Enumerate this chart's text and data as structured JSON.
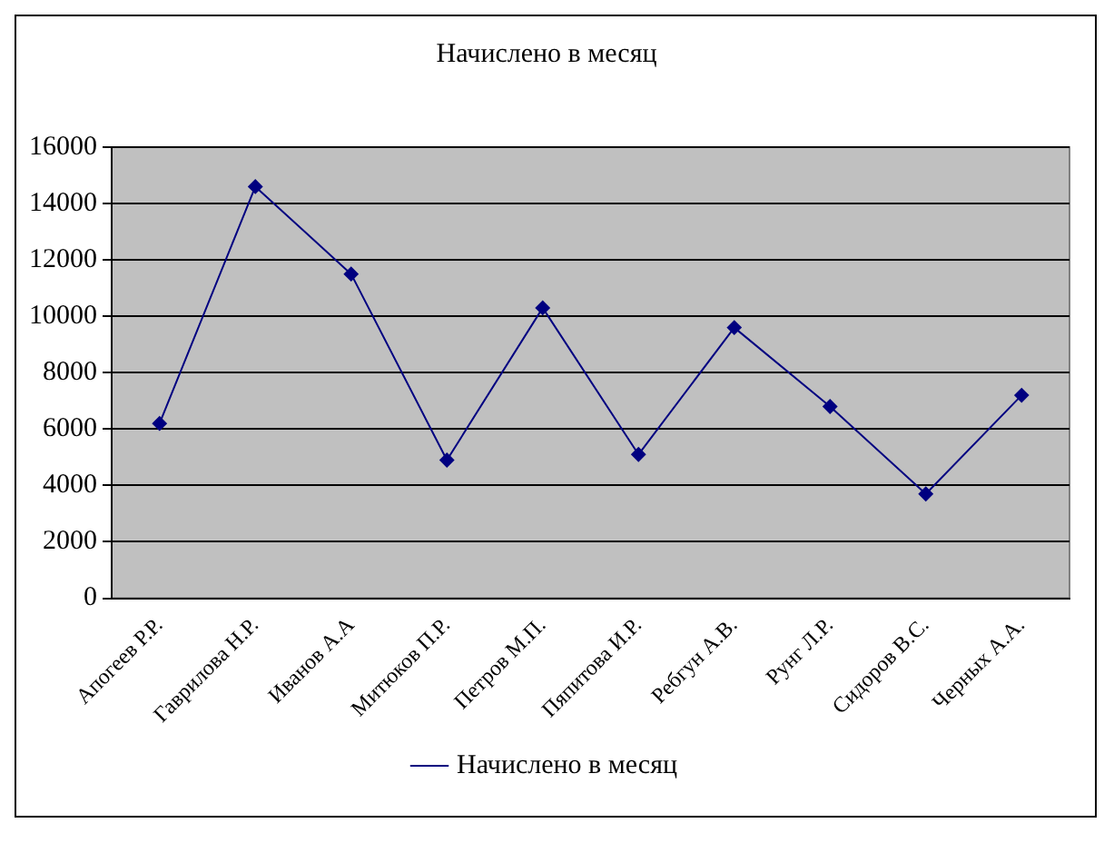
{
  "chart_data": {
    "type": "line",
    "title": "Начислено в месяц",
    "categories": [
      "Апогеев Р.Р.",
      "Гаврилова Н.Р.",
      "Иванов А.А",
      "Митюков П.Р.",
      "Петров М.П.",
      "Пяпитова И.Р.",
      "Ребгун А.В.",
      "Рунг Л.Р.",
      "Сидоров В.С.",
      "Черных А.А."
    ],
    "series": [
      {
        "name": "Начислено в месяц",
        "color": "#000080",
        "values": [
          6200,
          14600,
          11500,
          4900,
          10300,
          5100,
          9600,
          6800,
          3700,
          7200
        ]
      }
    ],
    "ylim": [
      0,
      16000
    ],
    "yticks": [
      0,
      2000,
      4000,
      6000,
      8000,
      10000,
      12000,
      14000,
      16000
    ],
    "grid": "y",
    "legend": "bottom",
    "marker": "diamond",
    "line_style": "solid"
  }
}
